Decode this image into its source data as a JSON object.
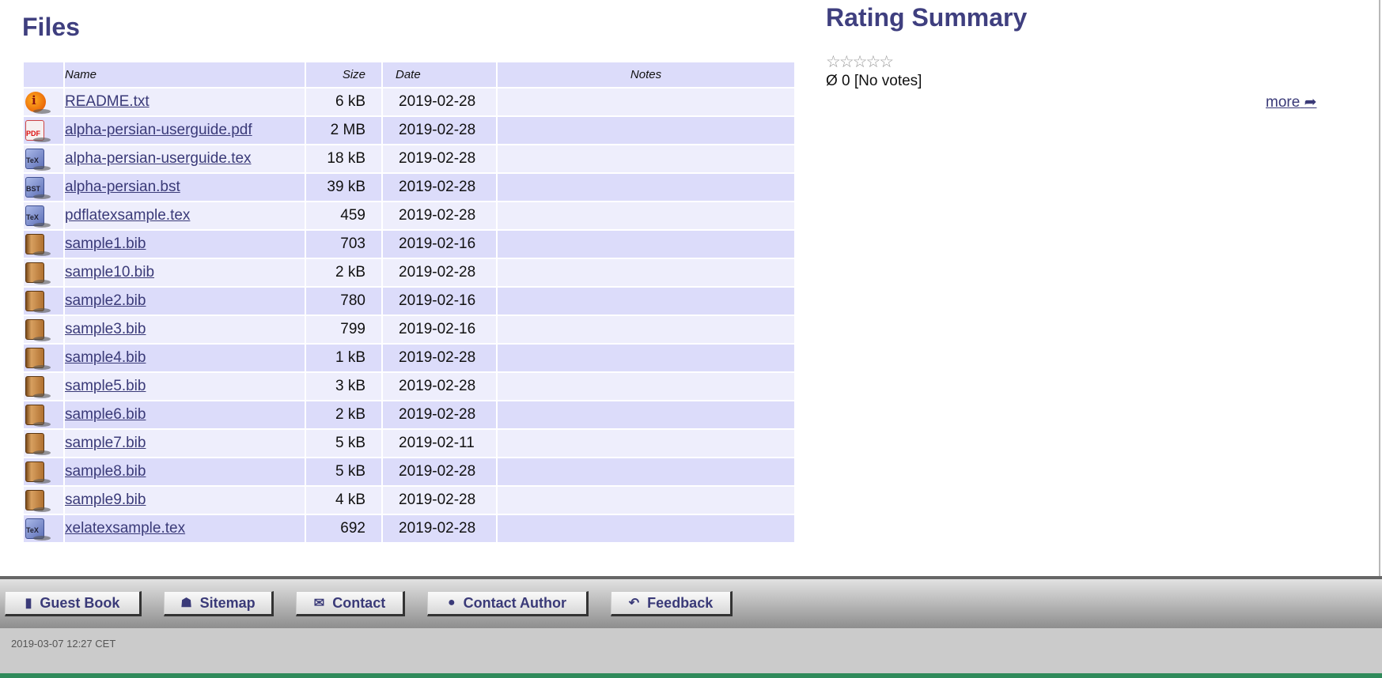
{
  "files": {
    "title": "Files",
    "columns": {
      "name": "Name",
      "size": "Size",
      "date": "Date",
      "notes": "Notes"
    },
    "rows": [
      {
        "icon": "info-icon",
        "type": "info",
        "name": "README.txt",
        "size": "6 kB",
        "date": "2019-02-28",
        "notes": ""
      },
      {
        "icon": "pdf-icon",
        "type": "pdf",
        "name": "alpha-persian-userguide.pdf",
        "size": "2 MB",
        "date": "2019-02-28",
        "notes": ""
      },
      {
        "icon": "tex-file-icon",
        "type": "tex",
        "label": "TeX",
        "name": "alpha-persian-userguide.tex",
        "size": "18 kB",
        "date": "2019-02-28",
        "notes": ""
      },
      {
        "icon": "bst-file-icon",
        "type": "tex",
        "label": "BST",
        "name": "alpha-persian.bst",
        "size": "39 kB",
        "date": "2019-02-28",
        "notes": ""
      },
      {
        "icon": "tex-file-icon",
        "type": "tex",
        "label": "TeX",
        "name": "pdflatexsample.tex",
        "size": "459",
        "date": "2019-02-28",
        "notes": ""
      },
      {
        "icon": "book-icon",
        "type": "bib",
        "name": "sample1.bib",
        "size": "703",
        "date": "2019-02-16",
        "notes": ""
      },
      {
        "icon": "book-icon",
        "type": "bib",
        "name": "sample10.bib",
        "size": "2 kB",
        "date": "2019-02-28",
        "notes": ""
      },
      {
        "icon": "book-icon",
        "type": "bib",
        "name": "sample2.bib",
        "size": "780",
        "date": "2019-02-16",
        "notes": ""
      },
      {
        "icon": "book-icon",
        "type": "bib",
        "name": "sample3.bib",
        "size": "799",
        "date": "2019-02-16",
        "notes": ""
      },
      {
        "icon": "book-icon",
        "type": "bib",
        "name": "sample4.bib",
        "size": "1 kB",
        "date": "2019-02-28",
        "notes": ""
      },
      {
        "icon": "book-icon",
        "type": "bib",
        "name": "sample5.bib",
        "size": "3 kB",
        "date": "2019-02-28",
        "notes": ""
      },
      {
        "icon": "book-icon",
        "type": "bib",
        "name": "sample6.bib",
        "size": "2 kB",
        "date": "2019-02-28",
        "notes": ""
      },
      {
        "icon": "book-icon",
        "type": "bib",
        "name": "sample7.bib",
        "size": "5 kB",
        "date": "2019-02-11",
        "notes": ""
      },
      {
        "icon": "book-icon",
        "type": "bib",
        "name": "sample8.bib",
        "size": "5 kB",
        "date": "2019-02-28",
        "notes": ""
      },
      {
        "icon": "book-icon",
        "type": "bib",
        "name": "sample9.bib",
        "size": "4 kB",
        "date": "2019-02-28",
        "notes": ""
      },
      {
        "icon": "tex-file-icon",
        "type": "tex",
        "label": "TeX",
        "name": "xelatexsample.tex",
        "size": "692",
        "date": "2019-02-28",
        "notes": ""
      }
    ]
  },
  "rating": {
    "title": "Rating Summary",
    "stars": "☆☆☆☆☆",
    "rating_value": 0,
    "max": 5,
    "votes_text": "Ø 0 [No votes]",
    "more": "more"
  },
  "footer": {
    "buttons": [
      {
        "label": "Guest Book",
        "icon": "book-icon"
      },
      {
        "label": "Sitemap",
        "icon": "sitemap-icon"
      },
      {
        "label": "Contact",
        "icon": "envelope-icon"
      },
      {
        "label": "Contact Author",
        "icon": "user-icon"
      },
      {
        "label": "Feedback",
        "icon": "reply-icon"
      }
    ],
    "timestamp": "2019-03-07 12:27 CET"
  },
  "colors": {
    "heading": "#3f3f7f",
    "row_light": "#eeeefc",
    "row_dark": "#dcdcfa",
    "link": "#3a3a78"
  }
}
